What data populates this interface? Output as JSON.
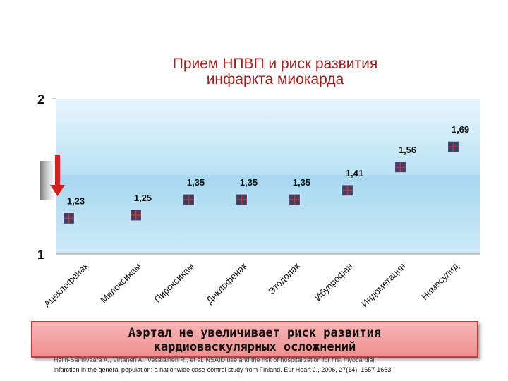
{
  "chart_data": {
    "type": "scatter",
    "title_lines": [
      "Прием НПВП и риск развития",
      "инфаркта миокарда"
    ],
    "categories": [
      "Ацеклофенак",
      "Мелоксикам",
      "Пироксикам",
      "Диклофенак",
      "Этодолак",
      "Ибупрофен",
      "Индометацин",
      "Нимесулид"
    ],
    "values": [
      1.23,
      1.25,
      1.35,
      1.35,
      1.35,
      1.41,
      1.56,
      1.69
    ],
    "value_labels": [
      "1,23",
      "1,25",
      "1,35",
      "1,35",
      "1,35",
      "1,41",
      "1,56",
      "1,69"
    ],
    "y_ticks": [
      {
        "value": 1,
        "label": "1"
      },
      {
        "value": 2,
        "label": "2"
      }
    ],
    "ylim": [
      1,
      2
    ],
    "grid": false,
    "legend": "none",
    "marker_color": "#3a3f6e",
    "marker_cross_color": "#c0392b",
    "arrow_color": "#d42020",
    "plot_band_colors": [
      "#bfe6f7",
      "#9fd6ee"
    ]
  },
  "banner": {
    "lines": [
      "Аэртал не увеличивает риск развития",
      "кардиоваскулярных осложнений"
    ],
    "color": "#ef9a9a"
  },
  "citation": {
    "lines": [
      "Helin-Salmivaara A., Virtanen A., Vesalainen R., et al. NSAID use and the risk of hospitalization for first myocardial",
      "infarction in the general population: a nationwide case-control study from Finland. Eur Heart J., 2006, 27(14), 1657-1663."
    ]
  }
}
